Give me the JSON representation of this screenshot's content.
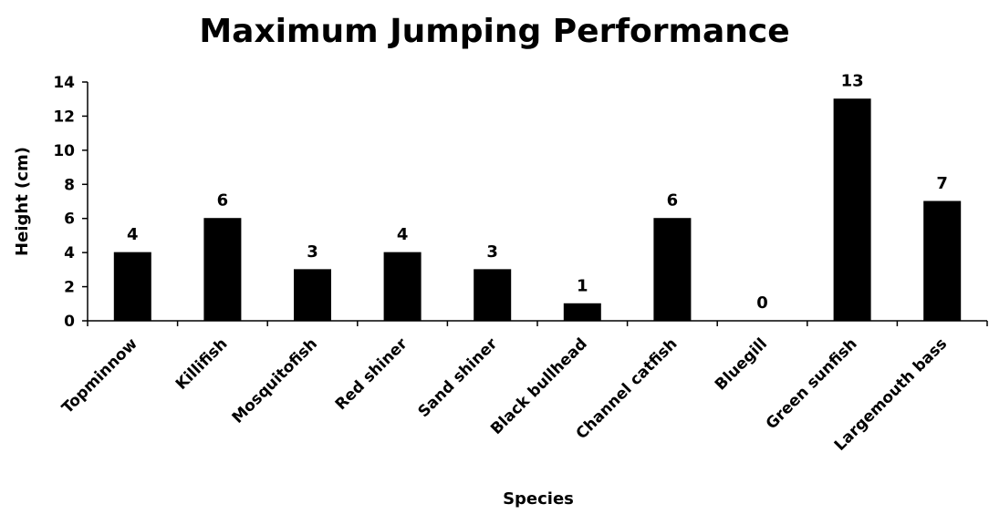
{
  "chart_data": {
    "type": "bar",
    "title": "Maximum Jumping Performance",
    "xlabel": "Species",
    "ylabel": "Height (cm)",
    "categories": [
      "Topminnow",
      "Killifish",
      "Mosquitofish",
      "Red shiner",
      "Sand shiner",
      "Black bullhead",
      "Channel catfish",
      "Bluegill",
      "Green sunfish",
      "Largemouth bass"
    ],
    "values": [
      4,
      6,
      3,
      4,
      3,
      1,
      6,
      0,
      13,
      7
    ],
    "data_labels": [
      "4",
      "6",
      "3",
      "4",
      "3",
      "1",
      "6",
      "0",
      "13",
      "7"
    ],
    "ylim": [
      0,
      14
    ],
    "yticks": [
      0,
      2,
      4,
      6,
      8,
      10,
      12,
      14
    ],
    "grid": false,
    "legend": "none",
    "bar_color": "#000000"
  }
}
